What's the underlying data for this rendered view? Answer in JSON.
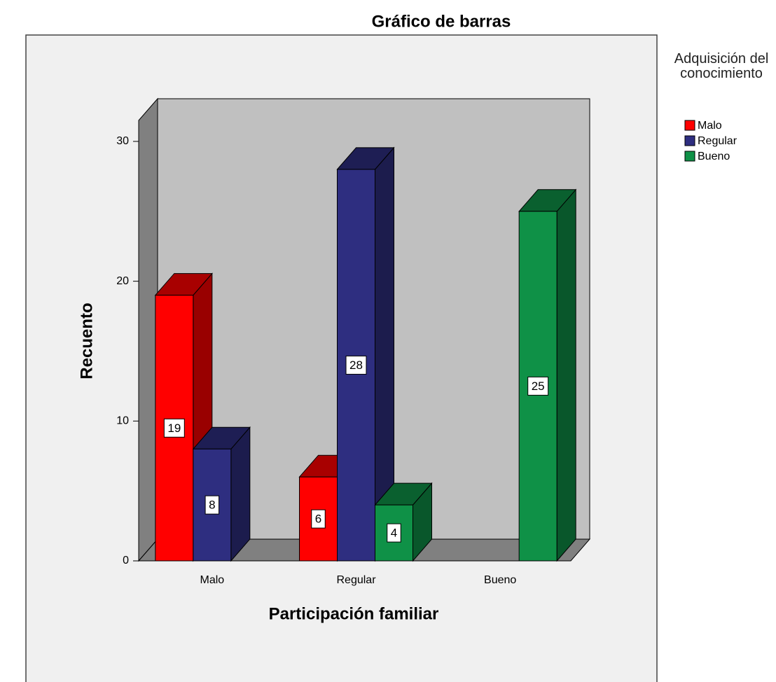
{
  "chart_data": {
    "type": "bar3d",
    "title": "Gráfico de barras",
    "x_label": "Participación familiar",
    "y_label": "Recuento",
    "legend_title": "Adquisición del conocimiento",
    "categories": [
      "Malo",
      "Regular",
      "Bueno"
    ],
    "series": [
      {
        "name": "Malo",
        "color": "#ff0000",
        "values": [
          19,
          6,
          null
        ]
      },
      {
        "name": "Regular",
        "color": "#2e2e80",
        "values": [
          8,
          28,
          null
        ]
      },
      {
        "name": "Bueno",
        "color": "#0f9147",
        "values": [
          null,
          4,
          25
        ]
      }
    ],
    "ylim": [
      0,
      31.5
    ],
    "yticks": [
      0,
      10,
      20,
      30
    ],
    "legend": "right"
  }
}
